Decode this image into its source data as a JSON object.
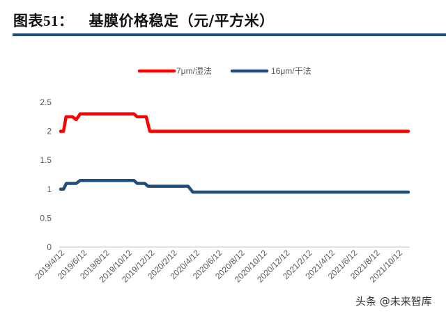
{
  "header": {
    "figure_label": "图表51：",
    "title": "基膜价格稳定（元/平方米）"
  },
  "watermark": "头条 @未来智库",
  "colors": {
    "wet": "#ff0000",
    "dry": "#1f4e79",
    "rule": "#1f4e79",
    "axis": "#d9d9d9",
    "tick_text": "#595959"
  },
  "chart_data": {
    "type": "line",
    "title": "基膜价格稳定（元/平方米）",
    "xlabel": "",
    "ylabel": "",
    "ylim": [
      0,
      2.5
    ],
    "yticks": [
      0,
      0.5,
      1,
      1.5,
      2,
      2.5
    ],
    "ytick_labels": [
      "0",
      "0.5",
      "1",
      "1.5",
      "2",
      "2.5"
    ],
    "grid": false,
    "legend_position": "top",
    "x_tick_labels": [
      "2019/4/12",
      "2019/6/12",
      "2019/8/12",
      "2019/10/12",
      "2019/12/12",
      "2020/2/12",
      "2020/4/12",
      "2020/6/12",
      "2020/8/12",
      "2020/10/12",
      "2020/12/12",
      "2021/2/12",
      "2021/4/12",
      "2021/6/12",
      "2021/8/12",
      "2021/10/12"
    ],
    "x_range": [
      "2019/4/12",
      "2021/11/30"
    ],
    "series": [
      {
        "name": "7μm/湿法",
        "color": "#ff0000",
        "points": [
          [
            "2019/4/12",
            2.0
          ],
          [
            "2019/4/20",
            2.0
          ],
          [
            "2019/4/27",
            2.25
          ],
          [
            "2019/5/15",
            2.25
          ],
          [
            "2019/5/25",
            2.2
          ],
          [
            "2019/6/5",
            2.3
          ],
          [
            "2019/11/1",
            2.3
          ],
          [
            "2019/11/10",
            2.25
          ],
          [
            "2019/12/5",
            2.25
          ],
          [
            "2019/12/15",
            2.0
          ],
          [
            "2021/11/30",
            2.0
          ]
        ]
      },
      {
        "name": "16μm/干法",
        "color": "#1f4e79",
        "points": [
          [
            "2019/4/12",
            1.0
          ],
          [
            "2019/4/20",
            1.0
          ],
          [
            "2019/4/28",
            1.1
          ],
          [
            "2019/5/25",
            1.1
          ],
          [
            "2019/6/5",
            1.15
          ],
          [
            "2019/11/1",
            1.15
          ],
          [
            "2019/11/10",
            1.1
          ],
          [
            "2019/12/1",
            1.1
          ],
          [
            "2019/12/10",
            1.05
          ],
          [
            "2020/3/30",
            1.05
          ],
          [
            "2020/4/12",
            0.95
          ],
          [
            "2021/11/30",
            0.95
          ]
        ]
      }
    ]
  }
}
